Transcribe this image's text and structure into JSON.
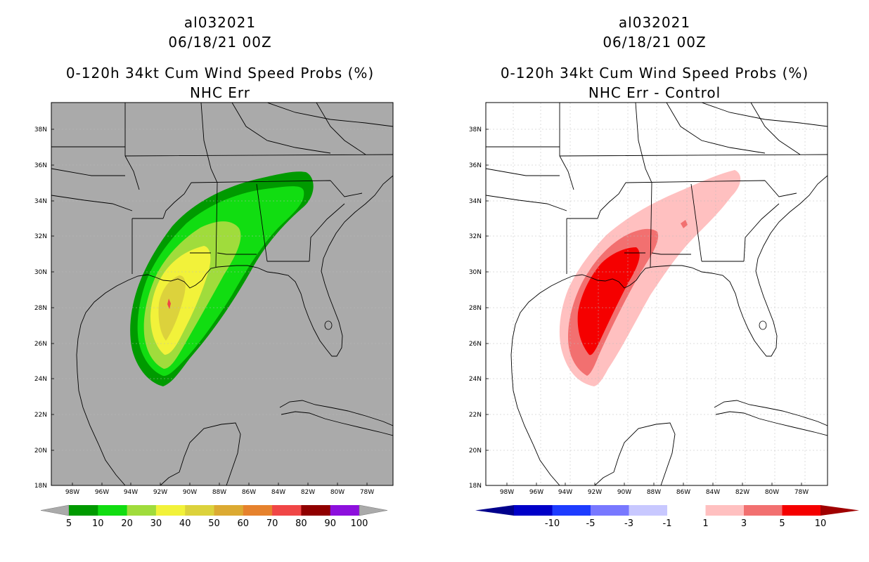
{
  "panels": [
    {
      "storm_id": "al032021",
      "datetime": "06/18/21 00Z",
      "title": "0-120h 34kt Cum Wind Speed Probs (%)",
      "subtitle": "NHC Err",
      "background": "#aaaaaa",
      "colorbar": {
        "labels": [
          "5",
          "10",
          "20",
          "30",
          "40",
          "50",
          "60",
          "70",
          "80",
          "90",
          "100"
        ],
        "colors": [
          "#009a00",
          "#11dd11",
          "#a0dc3c",
          "#f2f23a",
          "#dcd23c",
          "#dcaa32",
          "#e6822d",
          "#f04646",
          "#900000",
          "#8d10dd"
        ],
        "end_color": "#aaaaaa"
      }
    },
    {
      "storm_id": "al032021",
      "datetime": "06/18/21 00Z",
      "title": "0-120h 34kt Cum Wind Speed Probs (%)",
      "subtitle": "NHC Err - Control",
      "background": "#ffffff",
      "colorbar": {
        "labels": [
          "-10",
          "-5",
          "-3",
          "-1",
          "1",
          "3",
          "5",
          "10"
        ],
        "colors": [
          "#0000c8",
          "#1e3cff",
          "#7878ff",
          "#c8c8ff",
          "#ffffff",
          "#ffc0c0",
          "#f27070",
          "#f50000"
        ],
        "low_end_color": "#00008c",
        "high_end_color": "#a00000"
      }
    }
  ],
  "map": {
    "lat_labels": [
      "38N",
      "36N",
      "34N",
      "32N",
      "30N",
      "28N",
      "26N",
      "24N",
      "22N",
      "20N",
      "18N"
    ],
    "lon_labels": [
      "98W",
      "96W",
      "94W",
      "92W",
      "90W",
      "88W",
      "86W",
      "84W",
      "82W",
      "80W",
      "78W"
    ],
    "lat_range": [
      18,
      39.5
    ],
    "lon_range": [
      99.5,
      77
    ]
  }
}
